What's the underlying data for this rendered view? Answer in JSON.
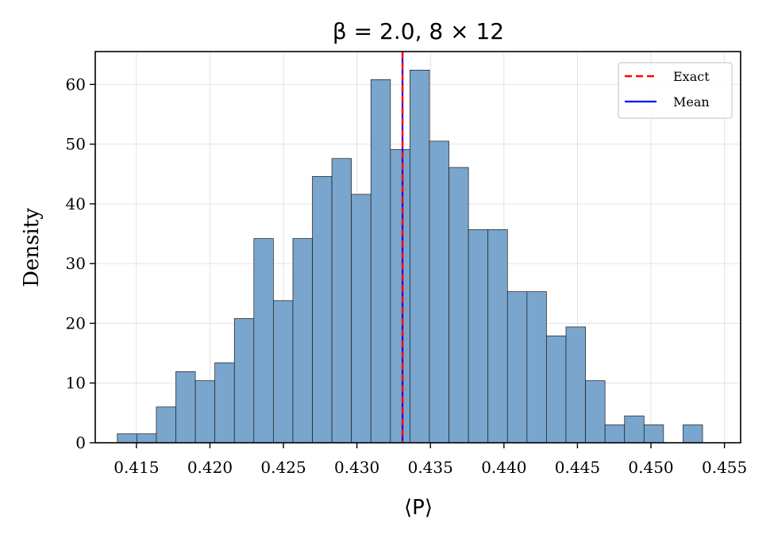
{
  "chart_data": {
    "type": "bar",
    "title": "β = 2.0,  8 × 12",
    "xlabel": "⟨P⟩",
    "ylabel": "Density",
    "xlim": [
      0.4122,
      0.4561
    ],
    "ylim": [
      0,
      65.5
    ],
    "xticks": [
      0.415,
      0.42,
      0.425,
      0.43,
      0.435,
      0.44,
      0.445,
      0.45,
      0.455
    ],
    "xtick_labels": [
      "0.415",
      "0.420",
      "0.425",
      "0.430",
      "0.435",
      "0.440",
      "0.445",
      "0.450",
      "0.455"
    ],
    "yticks": [
      0,
      10,
      20,
      30,
      40,
      50,
      60
    ],
    "ytick_labels": [
      "0",
      "10",
      "20",
      "30",
      "40",
      "50",
      "60"
    ],
    "grid": true,
    "bin_start": 0.4137,
    "bin_width": 0.001327,
    "values": [
      1.5,
      1.5,
      6.0,
      11.9,
      10.4,
      13.4,
      20.8,
      34.2,
      23.8,
      34.2,
      44.6,
      47.6,
      41.6,
      60.8,
      49.1,
      62.4,
      50.5,
      46.1,
      35.7,
      35.7,
      25.3,
      25.3,
      17.9,
      19.4,
      10.4,
      3.0,
      4.5,
      3.0,
      0,
      3.0
    ],
    "bar_color": "#7aa5cc",
    "bar_edge_color": "#1a1a1a",
    "exact_value": 0.4331,
    "mean_value": 0.4331,
    "exact_color": "#ff0000",
    "mean_color": "#0000ff",
    "legend": {
      "position": "top-right",
      "entries": [
        {
          "label": "Exact",
          "style": "dashed",
          "color": "#ff0000"
        },
        {
          "label": "Mean",
          "style": "solid",
          "color": "#0000ff"
        }
      ]
    }
  }
}
